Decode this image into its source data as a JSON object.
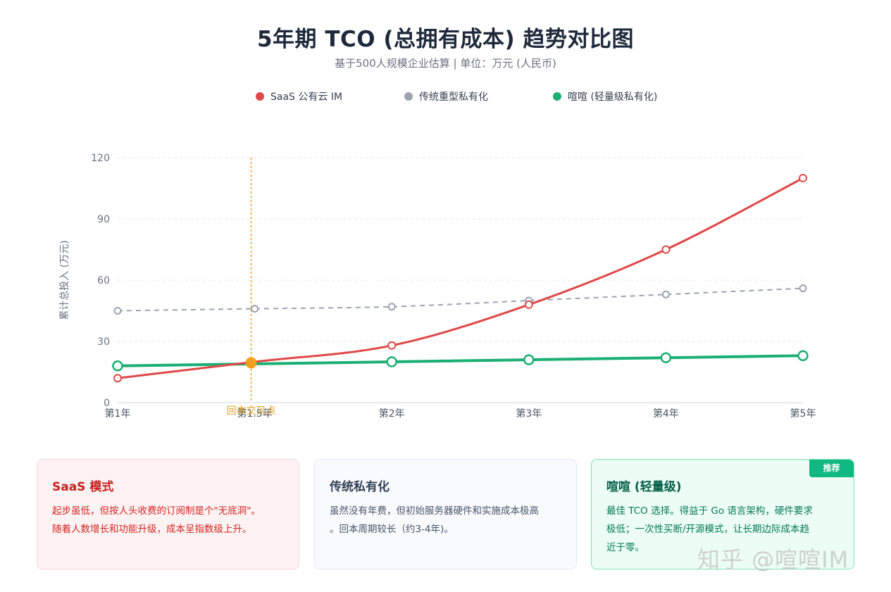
{
  "header": {
    "title": "5年期 TCO (总拥有成本) 趋势对比图",
    "subtitle": "基于500人规模企业估算 | 单位：万元 (人民币)"
  },
  "colors": {
    "saas": "#e04848",
    "traditional": "#9ca3af",
    "xuanxuan": "#1aaf74",
    "breakeven": "#f0a020"
  },
  "chart_data": {
    "type": "line",
    "categories": [
      "第1年",
      "第1.5年",
      "第2年",
      "第3年",
      "第4年",
      "第5年"
    ],
    "ylabel": "累计总投入 (万元)",
    "ylim": [
      0,
      120
    ],
    "yticks": [
      0,
      30,
      60,
      90,
      120
    ],
    "grid": true,
    "legend_position": "top-center",
    "series": [
      {
        "name": "SaaS 公有云 IM",
        "color": "#e04848",
        "dashed": false,
        "values": [
          12,
          20,
          28,
          48,
          75,
          110
        ]
      },
      {
        "name": "传统重型私有化",
        "color": "#9ca3af",
        "dashed": true,
        "values": [
          45,
          46,
          47,
          50,
          53,
          56
        ]
      },
      {
        "name": "喧喧 (轻量级私有化)",
        "color": "#1aaf74",
        "dashed": false,
        "values": [
          18,
          19,
          20,
          21,
          22,
          23
        ]
      }
    ],
    "annotation": {
      "label": "回本交叉点",
      "x_index": 1,
      "y": 19.5
    }
  },
  "cards": {
    "saas": {
      "title": "SaaS 模式",
      "lines": [
        "起步虽低，但按人头收费的订阅制是个\"无底洞\"。",
        "随着人数增长和功能升级，成本呈指数级上升。"
      ]
    },
    "traditional": {
      "title": "传统私有化",
      "lines": [
        "虽然没有年费，但初始服务器硬件和实施成本极高",
        "。回本周期较长（约3-4年)。"
      ]
    },
    "xuanxuan": {
      "title": "喧喧 (轻量级)",
      "badge": "推荐",
      "lines": [
        "最佳 TCO 选择。得益于 Go 语言架构，硬件要求",
        "极低；一次性买断/开源模式，让长期边际成本趋",
        "近于零。"
      ]
    }
  },
  "watermark": "知乎 @喧喧IM"
}
